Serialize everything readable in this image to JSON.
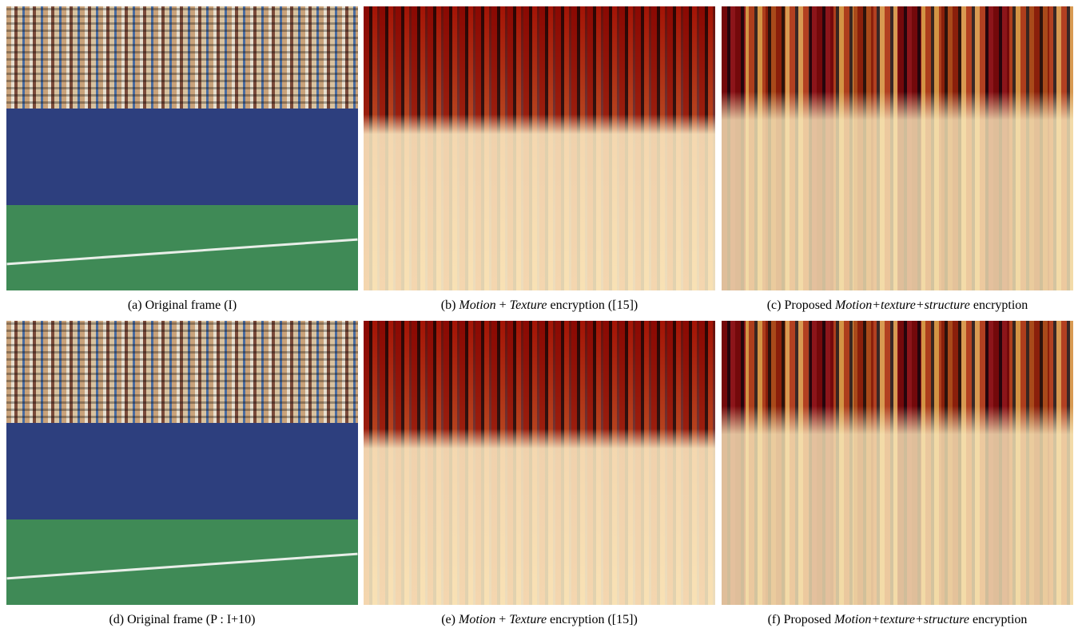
{
  "figure": {
    "panels": [
      {
        "parts": [
          "(a) Original frame (I)"
        ],
        "italic": [
          false
        ],
        "kind": "original"
      },
      {
        "parts": [
          "(b) ",
          "Motion",
          " + ",
          "Texture",
          " encryption ([15])"
        ],
        "italic": [
          false,
          true,
          false,
          true,
          false
        ],
        "kind": "encrypted"
      },
      {
        "parts": [
          "(c) Proposed ",
          "Motion+texture+structure",
          " encryption"
        ],
        "italic": [
          false,
          true,
          false
        ],
        "kind": "encrypted-structure"
      },
      {
        "parts": [
          "(d) Original frame (P : I+10)"
        ],
        "italic": [
          false
        ],
        "kind": "original"
      },
      {
        "parts": [
          "(e) ",
          "Motion",
          " + ",
          "Texture",
          " encryption ([15])"
        ],
        "italic": [
          false,
          true,
          false,
          true,
          false
        ],
        "kind": "encrypted"
      },
      {
        "parts": [
          "(f) Proposed ",
          "Motion+texture+structure",
          " encryption"
        ],
        "italic": [
          false,
          true,
          false
        ],
        "kind": "encrypted-structure"
      }
    ]
  }
}
